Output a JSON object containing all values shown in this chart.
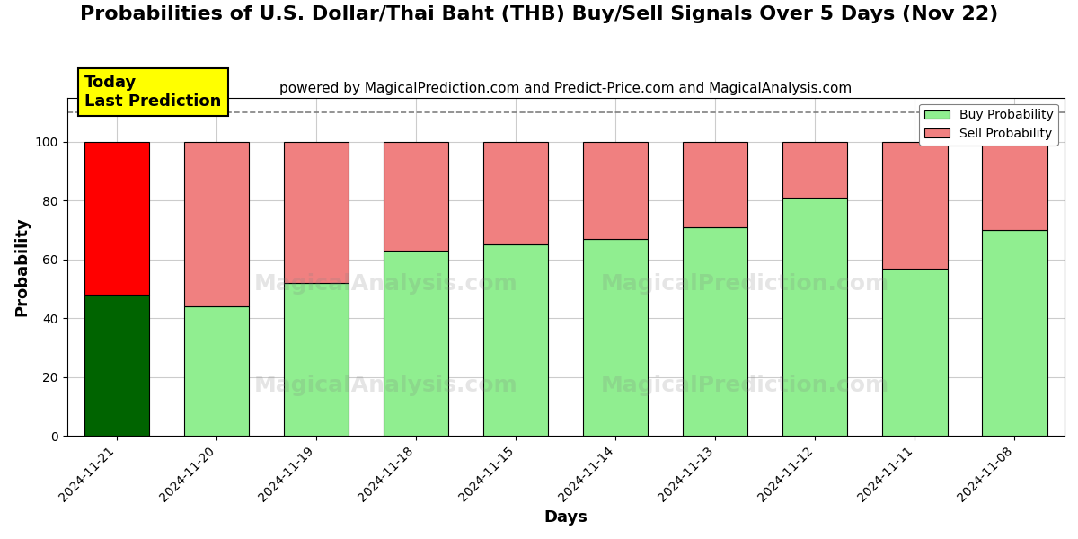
{
  "title": "Probabilities of U.S. Dollar/Thai Baht (THB) Buy/Sell Signals Over 5 Days (Nov 22)",
  "subtitle": "powered by MagicalPrediction.com and Predict-Price.com and MagicalAnalysis.com",
  "xlabel": "Days",
  "ylabel": "Probability",
  "categories": [
    "2024-11-21",
    "2024-11-20",
    "2024-11-19",
    "2024-11-18",
    "2024-11-15",
    "2024-11-14",
    "2024-11-13",
    "2024-11-12",
    "2024-11-11",
    "2024-11-08"
  ],
  "buy_values": [
    48,
    44,
    52,
    63,
    65,
    67,
    71,
    81,
    57,
    70
  ],
  "sell_values": [
    52,
    56,
    48,
    37,
    35,
    33,
    29,
    19,
    43,
    30
  ],
  "today_index": 0,
  "buy_color_today": "#006400",
  "sell_color_today": "#FF0000",
  "buy_color_normal": "#90EE90",
  "sell_color_normal": "#F08080",
  "bar_edge_color": "#000000",
  "today_label_bg": "#FFFF00",
  "today_label_text": "Today\nLast Prediction",
  "dashed_line_y": 110,
  "ylim": [
    0,
    115
  ],
  "yticks": [
    0,
    20,
    40,
    60,
    80,
    100
  ],
  "legend_buy_label": "Buy Probability",
  "legend_sell_label": "Sell Probability",
  "background_color": "#ffffff",
  "grid_color": "#cccccc",
  "title_fontsize": 16,
  "subtitle_fontsize": 11,
  "axis_label_fontsize": 13,
  "tick_fontsize": 10,
  "bar_width": 0.65
}
